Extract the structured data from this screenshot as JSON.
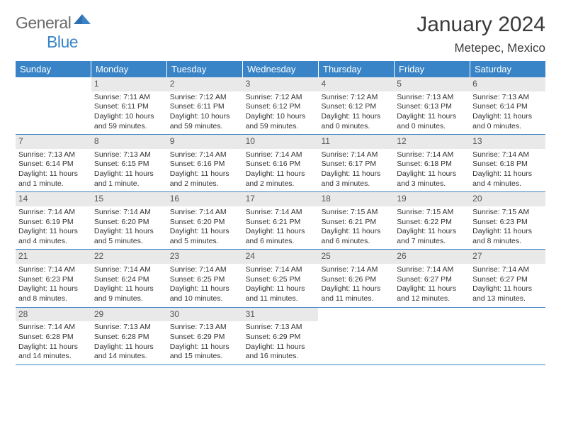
{
  "logo": {
    "text1": "General",
    "text2": "Blue"
  },
  "title": "January 2024",
  "location": "Metepec, Mexico",
  "colors": {
    "header_bg": "#3984c6",
    "header_text": "#ffffff",
    "daynum_bg": "#e9e9e9",
    "rule": "#3984c6",
    "logo_gray": "#6a6a6a",
    "logo_blue": "#3984c6"
  },
  "day_names": [
    "Sunday",
    "Monday",
    "Tuesday",
    "Wednesday",
    "Thursday",
    "Friday",
    "Saturday"
  ],
  "weeks": [
    [
      {
        "n": "",
        "sr": "",
        "ss": "",
        "dl": ""
      },
      {
        "n": "1",
        "sr": "Sunrise: 7:11 AM",
        "ss": "Sunset: 6:11 PM",
        "dl": "Daylight: 10 hours and 59 minutes."
      },
      {
        "n": "2",
        "sr": "Sunrise: 7:12 AM",
        "ss": "Sunset: 6:11 PM",
        "dl": "Daylight: 10 hours and 59 minutes."
      },
      {
        "n": "3",
        "sr": "Sunrise: 7:12 AM",
        "ss": "Sunset: 6:12 PM",
        "dl": "Daylight: 10 hours and 59 minutes."
      },
      {
        "n": "4",
        "sr": "Sunrise: 7:12 AM",
        "ss": "Sunset: 6:12 PM",
        "dl": "Daylight: 11 hours and 0 minutes."
      },
      {
        "n": "5",
        "sr": "Sunrise: 7:13 AM",
        "ss": "Sunset: 6:13 PM",
        "dl": "Daylight: 11 hours and 0 minutes."
      },
      {
        "n": "6",
        "sr": "Sunrise: 7:13 AM",
        "ss": "Sunset: 6:14 PM",
        "dl": "Daylight: 11 hours and 0 minutes."
      }
    ],
    [
      {
        "n": "7",
        "sr": "Sunrise: 7:13 AM",
        "ss": "Sunset: 6:14 PM",
        "dl": "Daylight: 11 hours and 1 minute."
      },
      {
        "n": "8",
        "sr": "Sunrise: 7:13 AM",
        "ss": "Sunset: 6:15 PM",
        "dl": "Daylight: 11 hours and 1 minute."
      },
      {
        "n": "9",
        "sr": "Sunrise: 7:14 AM",
        "ss": "Sunset: 6:16 PM",
        "dl": "Daylight: 11 hours and 2 minutes."
      },
      {
        "n": "10",
        "sr": "Sunrise: 7:14 AM",
        "ss": "Sunset: 6:16 PM",
        "dl": "Daylight: 11 hours and 2 minutes."
      },
      {
        "n": "11",
        "sr": "Sunrise: 7:14 AM",
        "ss": "Sunset: 6:17 PM",
        "dl": "Daylight: 11 hours and 3 minutes."
      },
      {
        "n": "12",
        "sr": "Sunrise: 7:14 AM",
        "ss": "Sunset: 6:18 PM",
        "dl": "Daylight: 11 hours and 3 minutes."
      },
      {
        "n": "13",
        "sr": "Sunrise: 7:14 AM",
        "ss": "Sunset: 6:18 PM",
        "dl": "Daylight: 11 hours and 4 minutes."
      }
    ],
    [
      {
        "n": "14",
        "sr": "Sunrise: 7:14 AM",
        "ss": "Sunset: 6:19 PM",
        "dl": "Daylight: 11 hours and 4 minutes."
      },
      {
        "n": "15",
        "sr": "Sunrise: 7:14 AM",
        "ss": "Sunset: 6:20 PM",
        "dl": "Daylight: 11 hours and 5 minutes."
      },
      {
        "n": "16",
        "sr": "Sunrise: 7:14 AM",
        "ss": "Sunset: 6:20 PM",
        "dl": "Daylight: 11 hours and 5 minutes."
      },
      {
        "n": "17",
        "sr": "Sunrise: 7:14 AM",
        "ss": "Sunset: 6:21 PM",
        "dl": "Daylight: 11 hours and 6 minutes."
      },
      {
        "n": "18",
        "sr": "Sunrise: 7:15 AM",
        "ss": "Sunset: 6:21 PM",
        "dl": "Daylight: 11 hours and 6 minutes."
      },
      {
        "n": "19",
        "sr": "Sunrise: 7:15 AM",
        "ss": "Sunset: 6:22 PM",
        "dl": "Daylight: 11 hours and 7 minutes."
      },
      {
        "n": "20",
        "sr": "Sunrise: 7:15 AM",
        "ss": "Sunset: 6:23 PM",
        "dl": "Daylight: 11 hours and 8 minutes."
      }
    ],
    [
      {
        "n": "21",
        "sr": "Sunrise: 7:14 AM",
        "ss": "Sunset: 6:23 PM",
        "dl": "Daylight: 11 hours and 8 minutes."
      },
      {
        "n": "22",
        "sr": "Sunrise: 7:14 AM",
        "ss": "Sunset: 6:24 PM",
        "dl": "Daylight: 11 hours and 9 minutes."
      },
      {
        "n": "23",
        "sr": "Sunrise: 7:14 AM",
        "ss": "Sunset: 6:25 PM",
        "dl": "Daylight: 11 hours and 10 minutes."
      },
      {
        "n": "24",
        "sr": "Sunrise: 7:14 AM",
        "ss": "Sunset: 6:25 PM",
        "dl": "Daylight: 11 hours and 11 minutes."
      },
      {
        "n": "25",
        "sr": "Sunrise: 7:14 AM",
        "ss": "Sunset: 6:26 PM",
        "dl": "Daylight: 11 hours and 11 minutes."
      },
      {
        "n": "26",
        "sr": "Sunrise: 7:14 AM",
        "ss": "Sunset: 6:27 PM",
        "dl": "Daylight: 11 hours and 12 minutes."
      },
      {
        "n": "27",
        "sr": "Sunrise: 7:14 AM",
        "ss": "Sunset: 6:27 PM",
        "dl": "Daylight: 11 hours and 13 minutes."
      }
    ],
    [
      {
        "n": "28",
        "sr": "Sunrise: 7:14 AM",
        "ss": "Sunset: 6:28 PM",
        "dl": "Daylight: 11 hours and 14 minutes."
      },
      {
        "n": "29",
        "sr": "Sunrise: 7:13 AM",
        "ss": "Sunset: 6:28 PM",
        "dl": "Daylight: 11 hours and 14 minutes."
      },
      {
        "n": "30",
        "sr": "Sunrise: 7:13 AM",
        "ss": "Sunset: 6:29 PM",
        "dl": "Daylight: 11 hours and 15 minutes."
      },
      {
        "n": "31",
        "sr": "Sunrise: 7:13 AM",
        "ss": "Sunset: 6:29 PM",
        "dl": "Daylight: 11 hours and 16 minutes."
      },
      {
        "n": "",
        "sr": "",
        "ss": "",
        "dl": ""
      },
      {
        "n": "",
        "sr": "",
        "ss": "",
        "dl": ""
      },
      {
        "n": "",
        "sr": "",
        "ss": "",
        "dl": ""
      }
    ]
  ]
}
